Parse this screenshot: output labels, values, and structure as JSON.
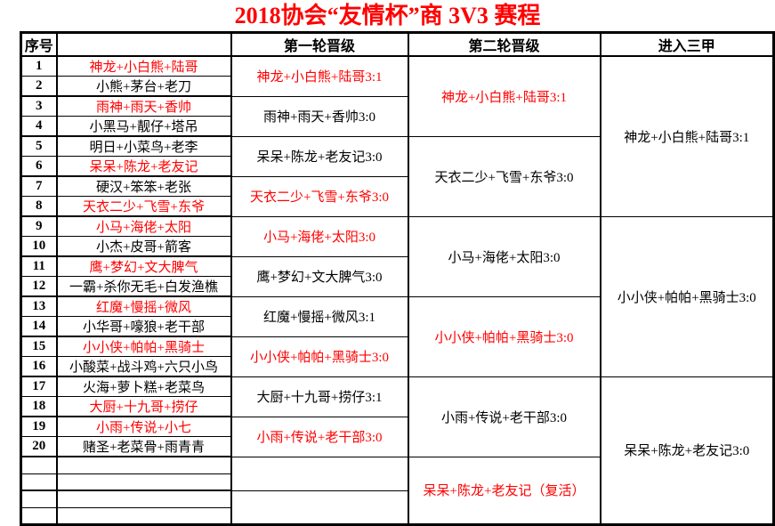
{
  "title": "2018协会“友情杯”商 3V3 赛程",
  "colors": {
    "accent_red": "#FF0000",
    "text_black": "#000000"
  },
  "table": {
    "headers": {
      "num": "序号",
      "team": "",
      "round1": "第一轮晋级",
      "round2": "第二轮晋级",
      "top3": "进入三甲"
    },
    "rows": [
      {
        "num": "1",
        "team": "神龙+小白熊+陆哥",
        "color": "#FF0000"
      },
      {
        "num": "2",
        "team": "小熊+茅台+老刀",
        "color": "#000000"
      },
      {
        "num": "3",
        "team": "雨神+雨天+香帅",
        "color": "#FF0000"
      },
      {
        "num": "4",
        "team": "小黑马+靓仔+塔吊",
        "color": "#000000"
      },
      {
        "num": "5",
        "team": "明日+小菜鸟+老李",
        "color": "#000000"
      },
      {
        "num": "6",
        "team": "呆呆+陈龙+老友记",
        "color": "#FF0000"
      },
      {
        "num": "7",
        "team": "硬汉+笨笨+老张",
        "color": "#000000"
      },
      {
        "num": "8",
        "team": "天衣二少+飞雪+东爷",
        "color": "#FF0000"
      },
      {
        "num": "9",
        "team": "小马+海佬+太阳",
        "color": "#FF0000"
      },
      {
        "num": "10",
        "team": "小杰+皮哥+箭客",
        "color": "#000000"
      },
      {
        "num": "11",
        "team": "鹰+梦幻+文大脾气",
        "color": "#FF0000"
      },
      {
        "num": "12",
        "team": "一霸+杀你无毛+白发渔樵",
        "color": "#000000"
      },
      {
        "num": "13",
        "team": "红魔+慢摇+微风",
        "color": "#FF0000"
      },
      {
        "num": "14",
        "team": "小华哥+嚎狼+老干部",
        "color": "#000000"
      },
      {
        "num": "15",
        "team": "小小侠+帕帕+黑骑士",
        "color": "#FF0000"
      },
      {
        "num": "16",
        "team": "小酸菜+战斗鸡+六只小鸟",
        "color": "#000000"
      },
      {
        "num": "17",
        "team": "火海+萝卜糕+老菜鸟",
        "color": "#000000"
      },
      {
        "num": "18",
        "team": "大厨+十九哥+捞仔",
        "color": "#FF0000"
      },
      {
        "num": "19",
        "team": "小雨+传说+小七",
        "color": "#FF0000"
      },
      {
        "num": "20",
        "team": "赌圣+老菜骨+雨青青",
        "color": "#000000"
      },
      {
        "num": "",
        "team": "",
        "color": "#000000"
      },
      {
        "num": "",
        "team": "",
        "color": "#000000"
      },
      {
        "num": "",
        "team": "",
        "color": "#000000"
      },
      {
        "num": "",
        "team": "",
        "color": "#000000"
      }
    ],
    "round1": [
      {
        "text": "神龙+小白熊+陆哥3:1",
        "color": "#FF0000"
      },
      {
        "text": "雨神+雨天+香帅3:0",
        "color": "#000000"
      },
      {
        "text": "呆呆+陈龙+老友记3:0",
        "color": "#000000"
      },
      {
        "text": "天衣二少+飞雪+东爷3:0",
        "color": "#FF0000"
      },
      {
        "text": "小马+海佬+太阳3:0",
        "color": "#FF0000"
      },
      {
        "text": "鹰+梦幻+文大脾气3:0",
        "color": "#000000"
      },
      {
        "text": "红魔+慢摇+微风3:1",
        "color": "#000000"
      },
      {
        "text": "小小侠+帕帕+黑骑士3:0",
        "color": "#FF0000"
      },
      {
        "text": "大厨+十九哥+捞仔3:1",
        "color": "#000000"
      },
      {
        "text": "小雨+传说+老干部3:0",
        "color": "#FF0000"
      },
      {
        "text": "",
        "color": "#000000"
      },
      {
        "text": "",
        "color": "#000000"
      }
    ],
    "round2": [
      {
        "text": "神龙+小白熊+陆哥3:1",
        "color": "#FF0000"
      },
      {
        "text": "天衣二少+飞雪+东爷3:0",
        "color": "#000000"
      },
      {
        "text": "小马+海佬+太阳3:0",
        "color": "#000000"
      },
      {
        "text": "小小侠+帕帕+黑骑士3:0",
        "color": "#FF0000"
      },
      {
        "text": "小雨+传说+老干部3:0",
        "color": "#000000"
      },
      {
        "text": "呆呆+陈龙+老友记（复活）",
        "color": "#FF0000"
      }
    ],
    "top3": [
      {
        "text": "神龙+小白熊+陆哥3:1",
        "color": "#000000"
      },
      {
        "text": "小小侠+帕帕+黑骑士3:0",
        "color": "#000000"
      },
      {
        "text": "呆呆+陈龙+老友记3:0",
        "color": "#000000"
      }
    ]
  }
}
